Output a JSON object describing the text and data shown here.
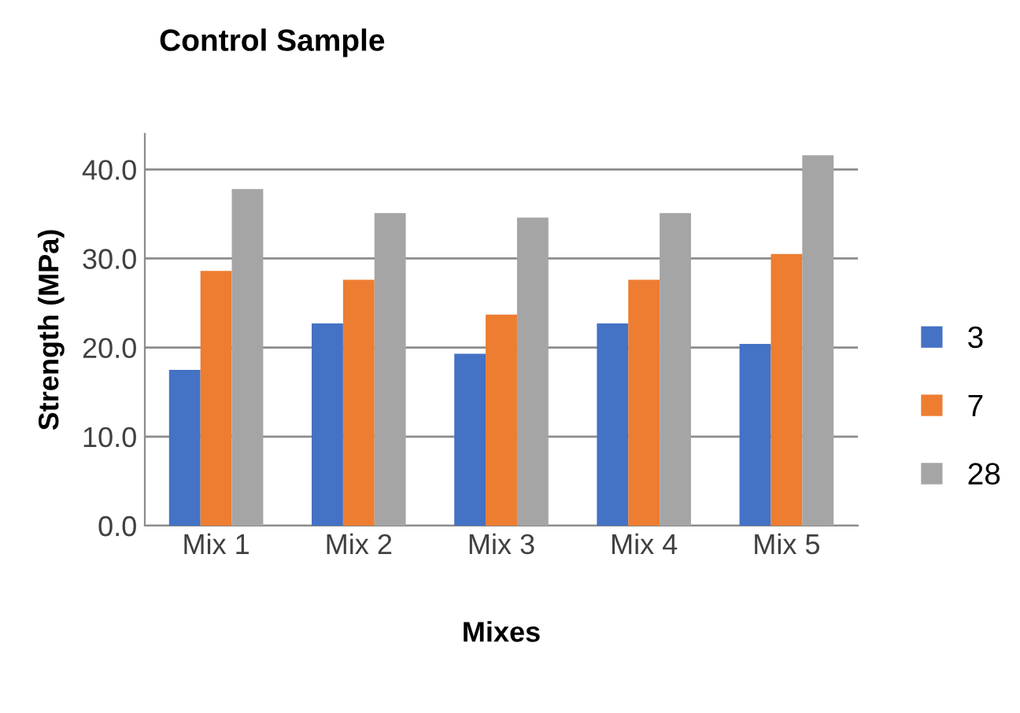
{
  "chart_data": {
    "type": "bar",
    "title": "Control Sample",
    "xlabel": "Mixes",
    "ylabel": "Strength (MPa)",
    "categories": [
      "Mix 1",
      "Mix 2",
      "Mix 3",
      "Mix 4",
      "Mix 5"
    ],
    "series": [
      {
        "name": "3",
        "color": "#4472c4",
        "values": [
          17.5,
          22.7,
          19.3,
          22.7,
          20.4
        ]
      },
      {
        "name": "7",
        "color": "#ed7d31",
        "values": [
          28.6,
          27.6,
          23.7,
          27.6,
          30.5
        ]
      },
      {
        "name": "28",
        "color": "#a5a5a5",
        "values": [
          37.8,
          35.1,
          34.6,
          35.1,
          41.6
        ]
      }
    ],
    "ylim": [
      0,
      44
    ],
    "yticks": [
      {
        "value": 0,
        "label": "0.0"
      },
      {
        "value": 10,
        "label": "10.0"
      },
      {
        "value": 20,
        "label": "20.0"
      },
      {
        "value": 30,
        "label": "30.0"
      },
      {
        "value": 40,
        "label": "40.0"
      }
    ],
    "grid": "y",
    "legend": "right"
  }
}
